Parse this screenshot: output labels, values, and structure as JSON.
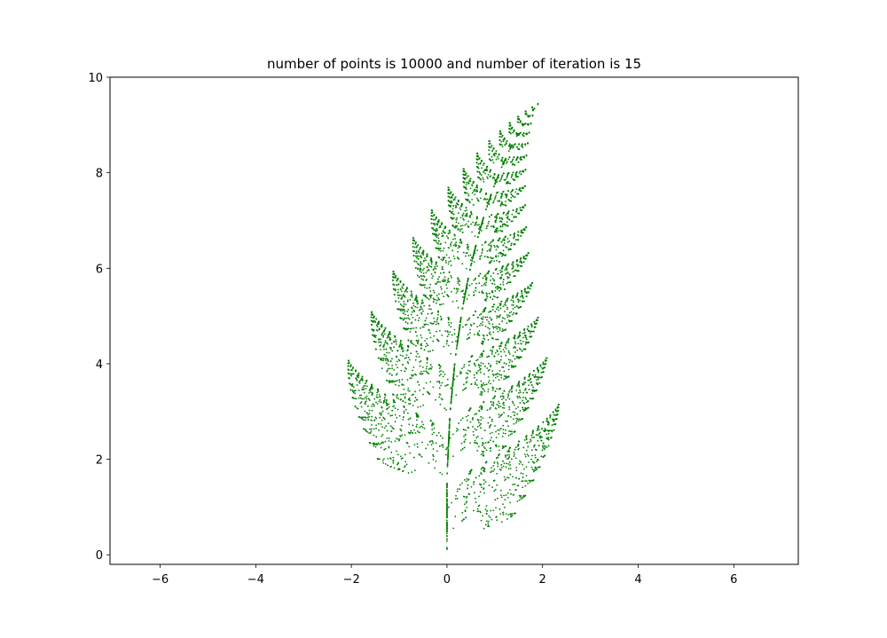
{
  "figure": {
    "title": "number of points is 10000 and number of iteration is 15"
  },
  "chart_data": {
    "type": "scatter",
    "title": "number of points is 10000 and number of iteration is 15",
    "xlabel": "",
    "ylabel": "",
    "xlim": [
      -7.05,
      7.35
    ],
    "ylim": [
      -0.2,
      10.0
    ],
    "xticks": [
      -6,
      -4,
      -2,
      0,
      2,
      4,
      6
    ],
    "yticks": [
      0,
      2,
      4,
      6,
      8,
      10
    ],
    "xtick_labels": [
      "−6",
      "−4",
      "−2",
      "0",
      "2",
      "4",
      "6"
    ],
    "ytick_labels": [
      "0",
      "2",
      "4",
      "6",
      "8",
      "10"
    ],
    "grid": false,
    "legend": "none",
    "marker_color": "#008000",
    "series": [
      {
        "generator": "Barnsley fern (iterated function system)",
        "points": 10000,
        "iterations": 15
      }
    ]
  }
}
